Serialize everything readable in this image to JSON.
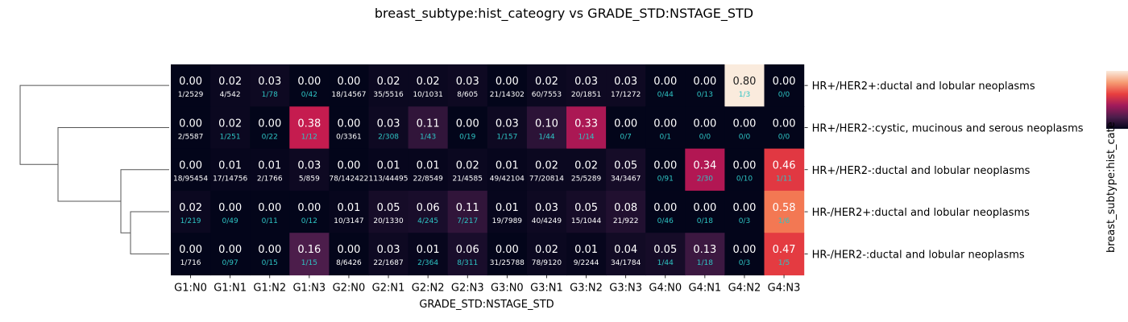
{
  "chart_data": {
    "type": "heatmap",
    "title": "breast_subtype:hist_cateogry vs GRADE_STD:NSTAGE_STD",
    "xlabel": "GRADE_STD:NSTAGE_STD",
    "ylabel": "breast_subtype:hist_cate",
    "x_categories": [
      "G1:N0",
      "G1:N1",
      "G1:N2",
      "G1:N3",
      "G2:N0",
      "G2:N1",
      "G2:N2",
      "G2:N3",
      "G3:N0",
      "G3:N1",
      "G3:N2",
      "G3:N3",
      "G4:N0",
      "G4:N1",
      "G4:N2",
      "G4:N3"
    ],
    "y_categories": [
      "HR+/HER2+:ductal and lobular neoplasms",
      "HR+/HER2-:cystic, mucinous and serous neoplasms",
      "HR+/HER2-:ductal and lobular neoplasms",
      "HR-/HER2+:ductal and lobular neoplasms",
      "HR-/HER2-:ductal and lobular neoplasms"
    ],
    "values": [
      [
        0.0,
        0.02,
        0.03,
        0.0,
        0.0,
        0.02,
        0.02,
        0.03,
        0.0,
        0.02,
        0.03,
        0.03,
        0.0,
        0.0,
        0.8,
        0.0
      ],
      [
        0.0,
        0.02,
        0.0,
        0.38,
        0.0,
        0.03,
        0.11,
        0.0,
        0.03,
        0.1,
        0.33,
        0.0,
        0.0,
        0.0,
        0.0,
        0.0
      ],
      [
        0.0,
        0.01,
        0.01,
        0.03,
        0.0,
        0.01,
        0.01,
        0.02,
        0.01,
        0.02,
        0.02,
        0.05,
        0.0,
        0.34,
        0.0,
        0.46
      ],
      [
        0.02,
        0.0,
        0.0,
        0.0,
        0.01,
        0.05,
        0.06,
        0.11,
        0.01,
        0.03,
        0.05,
        0.08,
        0.0,
        0.0,
        0.0,
        0.58
      ],
      [
        0.0,
        0.0,
        0.0,
        0.16,
        0.0,
        0.03,
        0.01,
        0.06,
        0.0,
        0.02,
        0.01,
        0.04,
        0.05,
        0.13,
        0.0,
        0.47
      ]
    ],
    "value_labels": [
      [
        "0.00",
        "0.02",
        "0.03",
        "0.00",
        "0.00",
        "0.02",
        "0.02",
        "0.03",
        "0.00",
        "0.02",
        "0.03",
        "0.03",
        "0.00",
        "0.00",
        "0.80",
        "0.00"
      ],
      [
        "0.00",
        "0.02",
        "0.00",
        "0.38",
        "0.00",
        "0.03",
        "0.11",
        "0.00",
        "0.03",
        "0.10",
        "0.33",
        "0.00",
        "0.00",
        "0.00",
        "0.00",
        "0.00"
      ],
      [
        "0.00",
        "0.01",
        "0.01",
        "0.03",
        "0.00",
        "0.01",
        "0.01",
        "0.02",
        "0.01",
        "0.02",
        "0.02",
        "0.05",
        "0.00",
        "0.34",
        "0.00",
        "0.46"
      ],
      [
        "0.02",
        "0.00",
        "0.00",
        "0.00",
        "0.01",
        "0.05",
        "0.06",
        "0.11",
        "0.01",
        "0.03",
        "0.05",
        "0.08",
        "0.00",
        "0.00",
        "0.00",
        "0.58"
      ],
      [
        "0.00",
        "0.00",
        "0.00",
        "0.16",
        "0.00",
        "0.03",
        "0.01",
        "0.06",
        "0.00",
        "0.02",
        "0.01",
        "0.04",
        "0.05",
        "0.13",
        "0.00",
        "0.47"
      ]
    ],
    "fractions": [
      [
        "1/2529",
        "4/542",
        "1/78",
        "0/42",
        "18/14567",
        "35/5516",
        "10/1031",
        "8/605",
        "21/14302",
        "60/7553",
        "20/1851",
        "17/1272",
        "0/44",
        "0/13",
        "1/3",
        "0/0"
      ],
      [
        "2/5587",
        "1/251",
        "0/22",
        "1/12",
        "0/3361",
        "2/308",
        "1/43",
        "0/19",
        "1/157",
        "1/44",
        "1/14",
        "0/7",
        "0/1",
        "0/0",
        "0/0",
        "0/0"
      ],
      [
        "18/95454",
        "17/14756",
        "2/1766",
        "5/859",
        "78/142422",
        "113/44495",
        "22/8549",
        "21/4585",
        "49/42104",
        "77/20814",
        "25/5289",
        "34/3467",
        "0/91",
        "2/30",
        "0/10",
        "1/11"
      ],
      [
        "1/219",
        "0/49",
        "0/11",
        "0/12",
        "10/3147",
        "20/1330",
        "4/245",
        "7/217",
        "19/7989",
        "40/4249",
        "15/1044",
        "21/922",
        "0/46",
        "0/18",
        "0/3",
        "1/6"
      ],
      [
        "1/716",
        "0/97",
        "0/15",
        "1/15",
        "8/6426",
        "22/1687",
        "2/364",
        "8/311",
        "31/25788",
        "78/9120",
        "9/2244",
        "34/1784",
        "1/44",
        "1/18",
        "0/3",
        "1/5"
      ]
    ],
    "small_sample_color": "#2ec4c4",
    "large_sample_color": "#ffffff",
    "dark_text_color": "#222222",
    "colormap": "rocket",
    "vmin": 0,
    "vmax": 0.8,
    "dendrogram": "rows",
    "colorbar_placement": "right"
  }
}
